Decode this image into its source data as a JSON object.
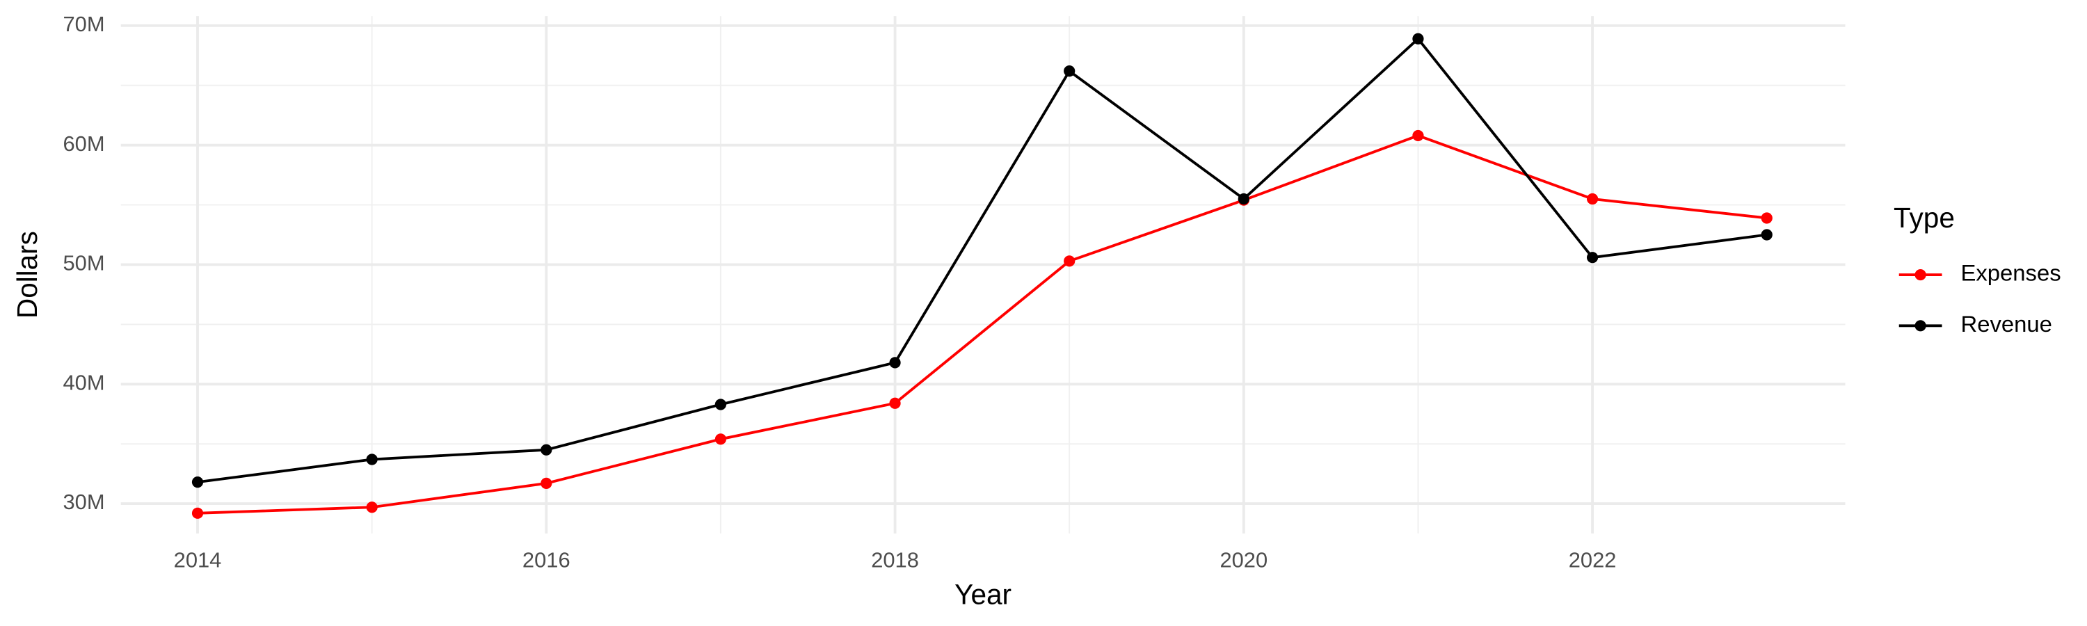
{
  "chart_data": {
    "type": "line",
    "x_label": "Year",
    "y_label": "Dollars",
    "legend_title": "Type",
    "x": [
      2014,
      2015,
      2016,
      2017,
      2018,
      2019,
      2020,
      2021,
      2022,
      2023
    ],
    "series": [
      {
        "name": "Expenses",
        "color": "#ff0000",
        "values": [
          29200000,
          29700000,
          31700000,
          35400000,
          38400000,
          50300000,
          55400000,
          60800000,
          55500000,
          53900000
        ]
      },
      {
        "name": "Revenue",
        "color": "#000000",
        "values": [
          31800000,
          33700000,
          34500000,
          38300000,
          41800000,
          66200000,
          55500000,
          68900000,
          50600000,
          52500000
        ]
      }
    ],
    "xlim": [
      2013.56,
      2023.45
    ],
    "xticks": [
      2014,
      2016,
      2018,
      2020,
      2022
    ],
    "ylim": [
      27500000,
      70800000
    ],
    "yticks": [
      {
        "value": 30000000,
        "label": "30M"
      },
      {
        "value": 40000000,
        "label": "40M"
      },
      {
        "value": 50000000,
        "label": "50M"
      },
      {
        "value": 60000000,
        "label": "60M"
      },
      {
        "value": 70000000,
        "label": "70M"
      }
    ],
    "grid": true,
    "legend": "right"
  }
}
